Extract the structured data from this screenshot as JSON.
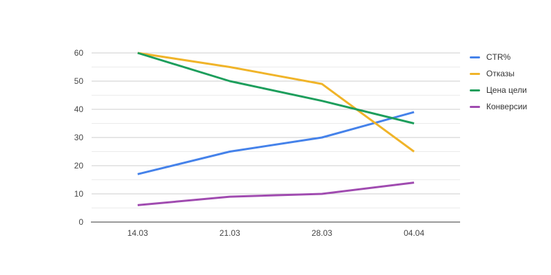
{
  "chart_data": {
    "type": "line",
    "title": "",
    "xlabel": "",
    "ylabel": "",
    "categories": [
      "14.03",
      "21.03",
      "28.03",
      "04.04"
    ],
    "series": [
      {
        "name": "CTR%",
        "color": "#4582ea",
        "values": [
          17,
          25,
          30,
          39
        ]
      },
      {
        "name": "Отказы",
        "color": "#f0b429",
        "values": [
          60,
          55,
          49,
          25
        ]
      },
      {
        "name": "Цена цели",
        "color": "#1d9e5c",
        "values": [
          60,
          50,
          43,
          35
        ]
      },
      {
        "name": "Конверсии",
        "color": "#a04bb0",
        "values": [
          6,
          9,
          10,
          14
        ]
      }
    ],
    "ylim": [
      0,
      60
    ],
    "y_major_ticks": [
      0,
      10,
      20,
      30,
      40,
      50,
      60
    ],
    "y_minor_step": 5,
    "grid": true,
    "legend_position": "right"
  },
  "colors": {
    "background": "#ffffff",
    "grid_major": "#cccccc",
    "grid_minor": "#ebebeb",
    "axis_line": "#333333",
    "tick_label": "#444444",
    "legend_text": "#333333"
  }
}
